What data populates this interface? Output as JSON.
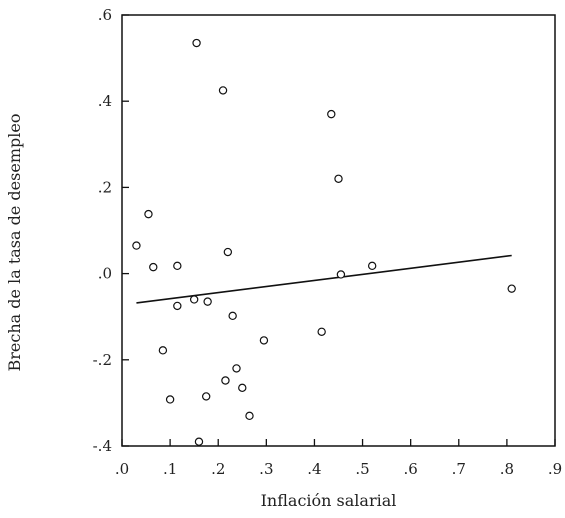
{
  "chart_data": {
    "type": "scatter",
    "title": "",
    "xlabel": "Inflación salarial",
    "ylabel": "Brecha de la tasa de desempleo",
    "xlim": [
      0.0,
      0.9
    ],
    "ylim": [
      -0.4,
      0.6
    ],
    "x_ticks": [
      0.0,
      0.1,
      0.2,
      0.3,
      0.4,
      0.5,
      0.6,
      0.7,
      0.8,
      0.9
    ],
    "x_tick_labels": [
      ".0",
      ".1",
      ".2",
      ".3",
      ".4",
      ".5",
      ".6",
      ".7",
      ".8",
      ".9"
    ],
    "y_ticks": [
      0.6,
      0.4,
      0.2,
      0.0,
      -0.2,
      -0.4
    ],
    "y_tick_labels": [
      ".6",
      ".4",
      ".2",
      ".0",
      "-.2",
      "-.4"
    ],
    "grid": false,
    "legend": "none",
    "series": [
      {
        "points": [
          {
            "x": 0.155,
            "y": 0.535
          },
          {
            "x": 0.21,
            "y": 0.425
          },
          {
            "x": 0.435,
            "y": 0.37
          },
          {
            "x": 0.45,
            "y": 0.22
          },
          {
            "x": 0.055,
            "y": 0.138
          },
          {
            "x": 0.03,
            "y": 0.065
          },
          {
            "x": 0.22,
            "y": 0.05
          },
          {
            "x": 0.065,
            "y": 0.015
          },
          {
            "x": 0.115,
            "y": 0.018
          },
          {
            "x": 0.52,
            "y": 0.018
          },
          {
            "x": 0.455,
            "y": -0.002
          },
          {
            "x": 0.81,
            "y": -0.035
          },
          {
            "x": 0.15,
            "y": -0.06
          },
          {
            "x": 0.178,
            "y": -0.065
          },
          {
            "x": 0.115,
            "y": -0.075
          },
          {
            "x": 0.23,
            "y": -0.098
          },
          {
            "x": 0.415,
            "y": -0.135
          },
          {
            "x": 0.295,
            "y": -0.155
          },
          {
            "x": 0.085,
            "y": -0.178
          },
          {
            "x": 0.238,
            "y": -0.22
          },
          {
            "x": 0.215,
            "y": -0.248
          },
          {
            "x": 0.25,
            "y": -0.265
          },
          {
            "x": 0.175,
            "y": -0.285
          },
          {
            "x": 0.1,
            "y": -0.292
          },
          {
            "x": 0.265,
            "y": -0.33
          },
          {
            "x": 0.16,
            "y": -0.39
          }
        ]
      }
    ],
    "fit_line": {
      "x": [
        0.03,
        0.81
      ],
      "y": [
        -0.068,
        0.042
      ]
    }
  }
}
